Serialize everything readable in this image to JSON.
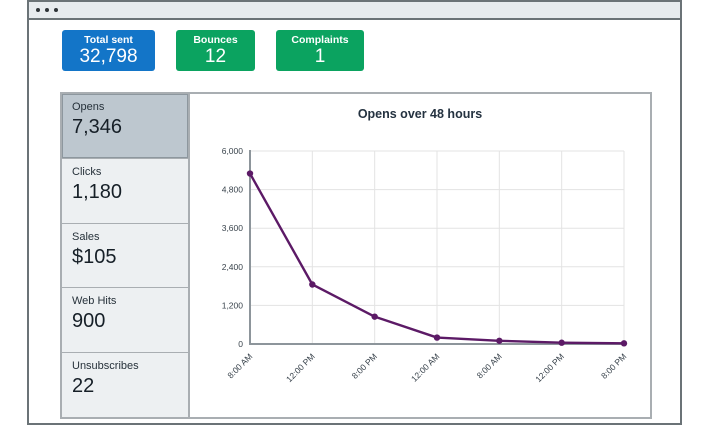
{
  "window": {
    "chrome_dots": 3
  },
  "cards": [
    {
      "label": "Total sent",
      "value": "32,798",
      "color": "#1375c8"
    },
    {
      "label": "Bounces",
      "value": "12",
      "color": "#0ba360"
    },
    {
      "label": "Complaints",
      "value": "1",
      "color": "#0ba360"
    }
  ],
  "sidebar": {
    "items": [
      {
        "label": "Opens",
        "value": "7,346",
        "selected": true
      },
      {
        "label": "Clicks",
        "value": "1,180",
        "selected": false
      },
      {
        "label": "Sales",
        "value": "$105",
        "selected": false
      },
      {
        "label": "Web Hits",
        "value": "900",
        "selected": false
      },
      {
        "label": "Unsubscribes",
        "value": "22",
        "selected": false
      }
    ]
  },
  "chart_data": {
    "type": "line",
    "title": "Opens over 48 hours",
    "categories": [
      "8:00 AM",
      "12:00 PM",
      "8:00 PM",
      "12:00 AM",
      "8:00 AM",
      "12:00 PM",
      "8:00 PM"
    ],
    "values": [
      5300,
      1850,
      850,
      200,
      100,
      40,
      20
    ],
    "xlabel": "",
    "ylabel": "",
    "ylim": [
      0,
      6000
    ],
    "yticks": [
      0,
      1200,
      2400,
      3600,
      4800,
      6000
    ],
    "ytick_labels": [
      "0",
      "1,200",
      "2,400",
      "3,600",
      "4,800",
      "6,000"
    ],
    "line_color": "#5c1a66",
    "grid_color": "#e3e3e3",
    "axis_color": "#8d959b",
    "tick_label_color": "#39434c",
    "legend": false,
    "grid": true
  }
}
